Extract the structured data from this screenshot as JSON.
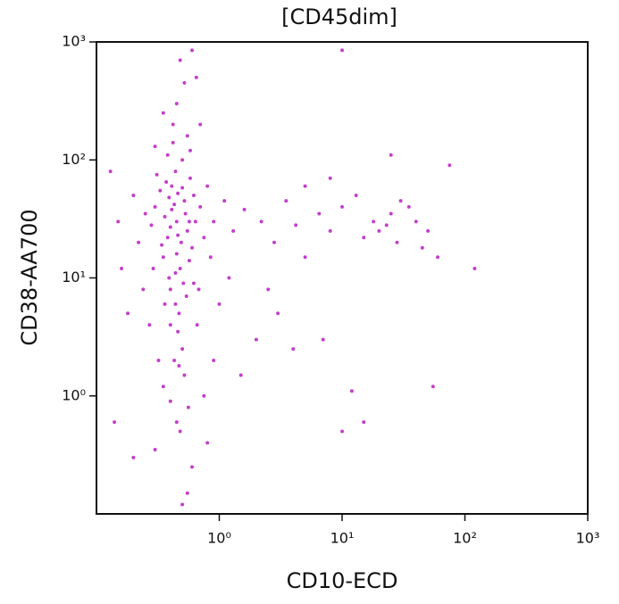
{
  "chart_data": {
    "type": "scatter",
    "title": "[CD45dim]",
    "x_label": "CD10-ECD",
    "y_label": "CD38-AA700",
    "color": "#b720c0",
    "log_x": true,
    "log_y": true,
    "xlim": [
      0.1,
      1000
    ],
    "ylim": [
      0.1,
      1000
    ],
    "xticks": [
      {
        "value": 1,
        "label": "10⁰"
      },
      {
        "value": 10,
        "label": "10¹"
      },
      {
        "value": 100,
        "label": "10²"
      },
      {
        "value": 1000,
        "label": "10³"
      }
    ],
    "yticks": [
      {
        "value": 1,
        "label": "10⁰"
      },
      {
        "value": 10,
        "label": "10¹"
      },
      {
        "value": 100,
        "label": "10²"
      },
      {
        "value": 1000,
        "label": "10³"
      }
    ],
    "x": [
      0.45,
      0.38,
      0.52,
      0.41,
      0.35,
      0.48,
      0.55,
      0.3,
      0.44,
      0.5,
      0.4,
      0.47,
      0.36,
      0.6,
      0.33,
      0.58,
      0.42,
      0.46,
      0.39,
      0.53,
      0.28,
      0.62,
      0.49,
      0.37,
      0.43,
      0.51,
      0.34,
      0.57,
      0.4,
      0.46,
      0.31,
      0.64,
      0.44,
      0.5,
      0.38,
      0.55,
      0.42,
      0.47,
      0.35,
      0.56,
      0.29,
      0.25,
      0.22,
      0.2,
      0.7,
      0.75,
      0.8,
      0.68,
      0.9,
      1.1,
      1.3,
      1.6,
      2.2,
      2.8,
      3.5,
      4.2,
      5,
      6.5,
      8,
      10,
      13,
      15,
      18,
      20,
      23,
      25,
      28,
      30,
      35,
      40,
      45,
      50,
      60,
      75,
      120,
      55,
      10,
      12,
      15,
      2,
      1.5,
      0.8,
      0.6,
      0.55,
      0.5,
      0.45,
      0.3,
      0.2,
      0.14,
      0.18,
      0.15,
      0.13,
      0.16,
      0.45,
      0.52,
      0.48,
      0.6,
      10,
      0.65,
      0.7,
      0.35,
      0.3,
      0.58,
      0.62,
      0.66,
      0.4,
      0.52,
      0.43,
      0.75,
      0.9,
      1.0,
      1.2,
      0.85,
      2.5,
      3,
      5,
      8,
      25,
      4,
      7,
      0.24,
      0.27,
      0.32,
      0.4,
      0.48,
      0.36,
      0.54,
      0.45,
      0.41,
      0.5,
      0.46,
      0.39,
      0.57,
      0.44
    ],
    "values": [
      30,
      22,
      45,
      60,
      15,
      12,
      25,
      40,
      80,
      100,
      8,
      5,
      33,
      18,
      55,
      70,
      140,
      3.5,
      10,
      35,
      28,
      50,
      20,
      65,
      42,
      9,
      19,
      14,
      27,
      52,
      75,
      30,
      6,
      2.5,
      110,
      160,
      200,
      1.8,
      1.2,
      0.8,
      12,
      35,
      20,
      50,
      40,
      22,
      60,
      8,
      30,
      45,
      25,
      38,
      30,
      20,
      45,
      28,
      15,
      35,
      25,
      40,
      50,
      22,
      30,
      25,
      28,
      35,
      20,
      45,
      40,
      30,
      18,
      25,
      15,
      90,
      12,
      1.2,
      0.5,
      1.1,
      0.6,
      3,
      1.5,
      0.4,
      0.25,
      0.15,
      0.12,
      0.6,
      0.35,
      0.3,
      0.6,
      5,
      30,
      80,
      12,
      300,
      450,
      700,
      850,
      850,
      500,
      200,
      250,
      130,
      120,
      9,
      4,
      4,
      1.5,
      2,
      1,
      2,
      6,
      10,
      15,
      8,
      5,
      60,
      70,
      110,
      2.5,
      3,
      8,
      4,
      2,
      0.9,
      0.5,
      6,
      7,
      16,
      38,
      58,
      23,
      48,
      30,
      11
    ]
  }
}
